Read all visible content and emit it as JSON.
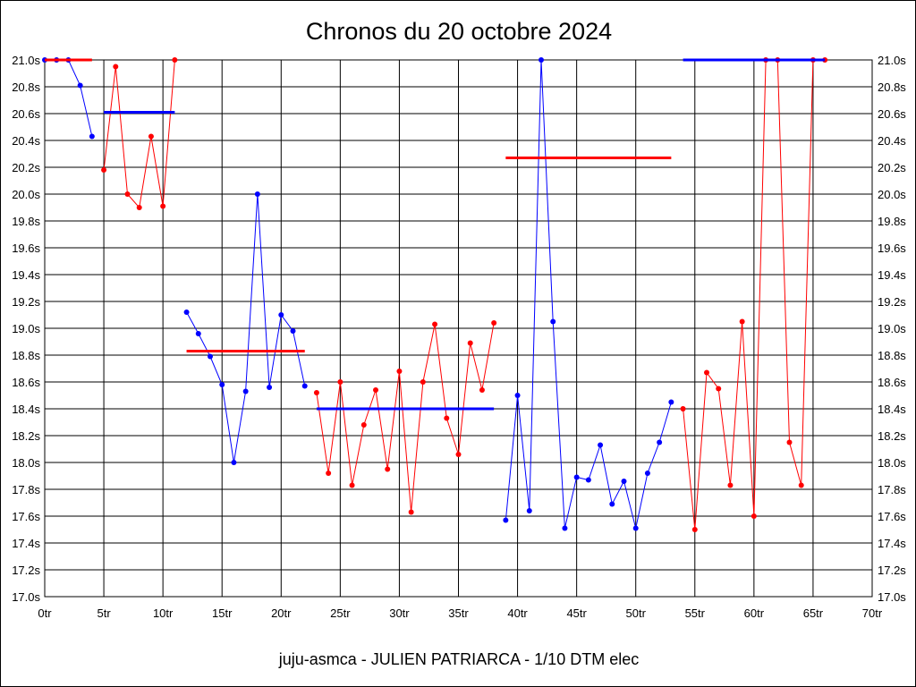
{
  "chart_data": {
    "type": "line",
    "title": "Chronos du 20 octobre 2024",
    "footer": "juju-asmca - JULIEN PATRIARCA - 1/10 DTM elec",
    "xlabel": "",
    "ylabel": "",
    "xlim": [
      0,
      70
    ],
    "ylim": [
      17.0,
      21.0
    ],
    "x_ticks": [
      0,
      5,
      10,
      15,
      20,
      25,
      30,
      35,
      40,
      45,
      50,
      55,
      60,
      65,
      70
    ],
    "x_tick_labels": [
      "0tr",
      "5tr",
      "10tr",
      "15tr",
      "20tr",
      "25tr",
      "30tr",
      "35tr",
      "40tr",
      "45tr",
      "50tr",
      "55tr",
      "60tr",
      "65tr",
      "70tr"
    ],
    "y_ticks": [
      17.0,
      17.2,
      17.4,
      17.6,
      17.8,
      18.0,
      18.2,
      18.4,
      18.6,
      18.8,
      19.0,
      19.2,
      19.4,
      19.6,
      19.8,
      20.0,
      20.2,
      20.4,
      20.6,
      20.8,
      21.0
    ],
    "y_tick_labels": [
      "17.0s",
      "17.2s",
      "17.4s",
      "17.6s",
      "17.8s",
      "18.0s",
      "18.2s",
      "18.4s",
      "18.6s",
      "18.8s",
      "19.0s",
      "19.2s",
      "19.4s",
      "19.6s",
      "19.8s",
      "20.0s",
      "20.2s",
      "20.4s",
      "20.6s",
      "20.8s",
      "21.0s"
    ],
    "grid": true,
    "legend": "none",
    "series": [
      {
        "color": "#0000ff",
        "points": [
          [
            0,
            21.0
          ],
          [
            1,
            21.0
          ],
          [
            2,
            21.0
          ],
          [
            3,
            20.81
          ],
          [
            4,
            20.43
          ]
        ]
      },
      {
        "color": "#ff0000",
        "points": [
          [
            5,
            20.18
          ],
          [
            6,
            20.95
          ],
          [
            7,
            20.0
          ],
          [
            8,
            19.9
          ],
          [
            9,
            20.43
          ],
          [
            10,
            19.91
          ],
          [
            11,
            21.0
          ]
        ]
      },
      {
        "color": "#0000ff",
        "points": [
          [
            12,
            19.12
          ],
          [
            13,
            18.96
          ],
          [
            14,
            18.79
          ],
          [
            15,
            18.58
          ],
          [
            16,
            18.0
          ],
          [
            17,
            18.53
          ],
          [
            18,
            20.0
          ],
          [
            19,
            18.56
          ],
          [
            20,
            19.1
          ],
          [
            21,
            18.98
          ],
          [
            22,
            18.57
          ]
        ]
      },
      {
        "color": "#ff0000",
        "points": [
          [
            23,
            18.52
          ],
          [
            24,
            17.92
          ],
          [
            25,
            18.6
          ],
          [
            26,
            17.83
          ],
          [
            27,
            18.28
          ],
          [
            28,
            18.54
          ],
          [
            29,
            17.95
          ],
          [
            30,
            18.68
          ],
          [
            31,
            17.63
          ],
          [
            32,
            18.6
          ],
          [
            33,
            19.03
          ],
          [
            34,
            18.33
          ],
          [
            35,
            18.06
          ],
          [
            36,
            18.89
          ],
          [
            37,
            18.54
          ],
          [
            38,
            19.04
          ]
        ]
      },
      {
        "color": "#0000ff",
        "points": [
          [
            39,
            17.57
          ],
          [
            40,
            18.5
          ],
          [
            41,
            17.64
          ],
          [
            42,
            21.0
          ],
          [
            43,
            19.05
          ],
          [
            44,
            17.51
          ],
          [
            45,
            17.89
          ],
          [
            46,
            17.87
          ],
          [
            47,
            18.13
          ],
          [
            48,
            17.69
          ],
          [
            49,
            17.86
          ],
          [
            50,
            17.51
          ],
          [
            51,
            17.92
          ],
          [
            52,
            18.15
          ],
          [
            53,
            18.45
          ]
        ]
      },
      {
        "color": "#ff0000",
        "points": [
          [
            54,
            18.4
          ],
          [
            55,
            17.5
          ],
          [
            56,
            18.67
          ],
          [
            57,
            18.55
          ],
          [
            58,
            17.83
          ],
          [
            59,
            19.05
          ],
          [
            60,
            17.6
          ],
          [
            61,
            21.0
          ],
          [
            62,
            21.0
          ],
          [
            63,
            18.15
          ],
          [
            64,
            17.83
          ],
          [
            65,
            21.0
          ],
          [
            66,
            21.0
          ]
        ]
      }
    ],
    "average_lines": [
      {
        "color": "#ff0000",
        "x": [
          0,
          4
        ],
        "y": 21.0
      },
      {
        "color": "#0000ff",
        "x": [
          5,
          11
        ],
        "y": 20.61
      },
      {
        "color": "#ff0000",
        "x": [
          12,
          22
        ],
        "y": 18.83
      },
      {
        "color": "#0000ff",
        "x": [
          23,
          38
        ],
        "y": 18.4
      },
      {
        "color": "#ff0000",
        "x": [
          39,
          53
        ],
        "y": 20.27
      },
      {
        "color": "#0000ff",
        "x": [
          54,
          66
        ],
        "y": 21.0
      }
    ]
  }
}
